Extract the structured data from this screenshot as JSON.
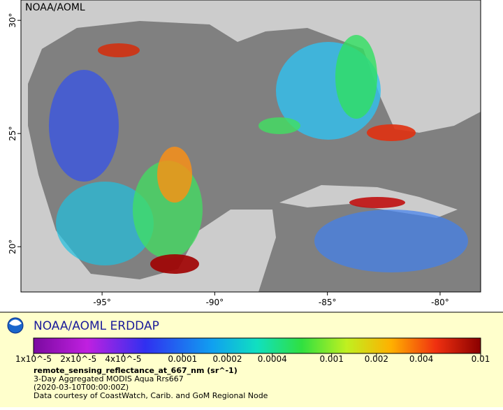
{
  "map": {
    "watermark": "NOAA/AOML",
    "xlim": [
      -98.6,
      -78.2
    ],
    "ylim": [
      18.0,
      30.9
    ],
    "xticks": [
      {
        "value": -95,
        "label": "-95°"
      },
      {
        "value": -90,
        "label": "-90°"
      },
      {
        "value": -85,
        "label": "-85°"
      },
      {
        "value": -80,
        "label": "-80°"
      }
    ],
    "yticks": [
      {
        "value": 20,
        "label": "20°"
      },
      {
        "value": 25,
        "label": "25°"
      },
      {
        "value": 30,
        "label": "30°"
      }
    ]
  },
  "legend": {
    "brand": "NOAA/AOML ERDDAP",
    "scale": "log",
    "lim": [
      1e-05,
      0.01
    ],
    "ticks": [
      {
        "value": 1e-05,
        "label": "1x10^-5"
      },
      {
        "value": 2e-05,
        "label": "2x10^-5"
      },
      {
        "value": 4e-05,
        "label": "4x10^-5"
      },
      0.0001,
      0.0002,
      0.0004,
      0.001,
      0.002,
      0.004,
      0.01
    ],
    "variable": "remote_sensing_reflectance_at_667_nm (sr^-1)",
    "lines": [
      "3-Day Aggregated MODIS Aqua Rrs667",
      "(2020-03-10T00:00:00Z)",
      "Data courtesy of CoastWatch, Carib. and GoM Regional Node"
    ]
  }
}
